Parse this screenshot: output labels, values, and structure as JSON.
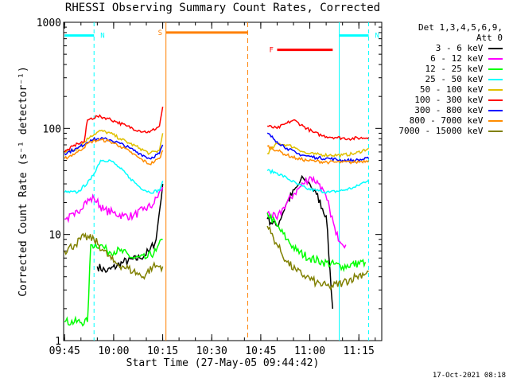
{
  "chart_data": {
    "type": "line",
    "title": "RHESSI Observing Summary Count Rates, Corrected",
    "xlabel": "Start Time (27-May-05 09:44:42)",
    "ylabel": "Corrected Count Rate (s⁻¹ detector⁻¹)",
    "yscale": "log",
    "ylim": [
      1,
      1000
    ],
    "xlim": [
      "09:45",
      "11:22"
    ],
    "x_ticks": [
      "09:45",
      "10:00",
      "10:15",
      "10:30",
      "10:45",
      "11:00",
      "11:15"
    ],
    "y_ticks": [
      "1",
      "10",
      "100",
      "1000"
    ],
    "grid": false,
    "legend_position": "right",
    "legend_header": [
      "Det 1,3,4,5,6,9,",
      "Att 0"
    ],
    "series": [
      {
        "name": "3 - 6 keV",
        "color": "#000000",
        "points": [
          [
            "09:55",
            5
          ],
          [
            "09:58",
            4.5
          ],
          [
            "10:03",
            5.5
          ],
          [
            "10:08",
            6
          ],
          [
            "10:11",
            7
          ],
          [
            "10:13",
            9
          ],
          [
            "10:15",
            30
          ],
          [
            "10:47",
            14
          ],
          [
            "10:50",
            12
          ],
          [
            "10:53",
            20
          ],
          [
            "10:56",
            28
          ],
          [
            "10:58",
            34
          ],
          [
            "11:00",
            30
          ],
          [
            "11:02",
            24
          ],
          [
            "11:05",
            15
          ],
          [
            "11:07",
            2
          ]
        ]
      },
      {
        "name": "6 - 12 keV",
        "color": "#ff00ff",
        "points": [
          [
            "09:45",
            14
          ],
          [
            "09:48",
            15
          ],
          [
            "09:51",
            20
          ],
          [
            "09:54",
            22
          ],
          [
            "09:57",
            17
          ],
          [
            "10:00",
            16
          ],
          [
            "10:03",
            15
          ],
          [
            "10:06",
            15
          ],
          [
            "10:09",
            17
          ],
          [
            "10:12",
            19
          ],
          [
            "10:15",
            28
          ],
          [
            "10:47",
            16
          ],
          [
            "10:50",
            14
          ],
          [
            "10:52",
            18
          ],
          [
            "10:55",
            24
          ],
          [
            "10:58",
            30
          ],
          [
            "11:00",
            35
          ],
          [
            "11:03",
            30
          ],
          [
            "11:06",
            18
          ],
          [
            "11:08",
            10
          ],
          [
            "11:11",
            8
          ]
        ]
      },
      {
        "name": "12 - 25 keV",
        "color": "#00ff00",
        "points": [
          [
            "09:45",
            1.5
          ],
          [
            "09:52",
            1.5
          ],
          [
            "09:53",
            8
          ],
          [
            "09:56",
            8
          ],
          [
            "09:58",
            7
          ],
          [
            "10:02",
            7
          ],
          [
            "10:06",
            6
          ],
          [
            "10:10",
            6
          ],
          [
            "10:13",
            7
          ],
          [
            "10:15",
            9
          ],
          [
            "10:47",
            16
          ],
          [
            "10:50",
            12
          ],
          [
            "10:53",
            9
          ],
          [
            "10:56",
            7
          ],
          [
            "11:00",
            6
          ],
          [
            "11:04",
            5.5
          ],
          [
            "11:10",
            5
          ],
          [
            "11:17",
            5.5
          ]
        ]
      },
      {
        "name": "25 - 50 keV",
        "color": "#00ffff",
        "points": [
          [
            "09:45",
            25
          ],
          [
            "09:49",
            25
          ],
          [
            "09:53",
            33
          ],
          [
            "09:56",
            50
          ],
          [
            "09:59",
            50
          ],
          [
            "10:02",
            42
          ],
          [
            "10:05",
            34
          ],
          [
            "10:08",
            28
          ],
          [
            "10:11",
            25
          ],
          [
            "10:14",
            26
          ],
          [
            "10:15",
            32
          ],
          [
            "10:47",
            40
          ],
          [
            "10:50",
            38
          ],
          [
            "10:53",
            34
          ],
          [
            "10:56",
            30
          ],
          [
            "10:59",
            27
          ],
          [
            "11:02",
            26
          ],
          [
            "11:06",
            25
          ],
          [
            "11:10",
            26
          ],
          [
            "11:14",
            28
          ],
          [
            "11:18",
            33
          ]
        ]
      },
      {
        "name": "50 - 100 keV",
        "color": "#e0c000",
        "points": [
          [
            "09:45",
            60
          ],
          [
            "09:49",
            65
          ],
          [
            "09:53",
            85
          ],
          [
            "09:56",
            95
          ],
          [
            "09:59",
            90
          ],
          [
            "10:02",
            80
          ],
          [
            "10:05",
            72
          ],
          [
            "10:08",
            65
          ],
          [
            "10:11",
            58
          ],
          [
            "10:14",
            62
          ],
          [
            "10:15",
            90
          ],
          [
            "10:47",
            58
          ],
          [
            "10:50",
            72
          ],
          [
            "10:53",
            70
          ],
          [
            "10:56",
            65
          ],
          [
            "10:59",
            58
          ],
          [
            "11:02",
            57
          ],
          [
            "11:06",
            56
          ],
          [
            "11:10",
            56
          ],
          [
            "11:14",
            58
          ],
          [
            "11:18",
            65
          ]
        ]
      },
      {
        "name": "100 - 300 keV",
        "color": "#ff0000",
        "points": [
          [
            "09:45",
            60
          ],
          [
            "09:49",
            72
          ],
          [
            "09:51",
            75
          ],
          [
            "09:52",
            120
          ],
          [
            "09:55",
            130
          ],
          [
            "09:58",
            125
          ],
          [
            "10:01",
            115
          ],
          [
            "10:04",
            105
          ],
          [
            "10:08",
            95
          ],
          [
            "10:11",
            92
          ],
          [
            "10:14",
            105
          ],
          [
            "10:15",
            160
          ],
          [
            "10:47",
            105
          ],
          [
            "10:50",
            100
          ],
          [
            "10:53",
            112
          ],
          [
            "10:55",
            120
          ],
          [
            "10:58",
            105
          ],
          [
            "11:01",
            92
          ],
          [
            "11:04",
            85
          ],
          [
            "11:08",
            82
          ],
          [
            "11:12",
            80
          ],
          [
            "11:18",
            82
          ]
        ]
      },
      {
        "name": "300 - 800 keV",
        "color": "#0000ff",
        "points": [
          [
            "09:45",
            58
          ],
          [
            "09:49",
            65
          ],
          [
            "09:53",
            78
          ],
          [
            "09:56",
            80
          ],
          [
            "09:59",
            78
          ],
          [
            "10:02",
            72
          ],
          [
            "10:05",
            65
          ],
          [
            "10:08",
            58
          ],
          [
            "10:11",
            52
          ],
          [
            "10:14",
            58
          ],
          [
            "10:15",
            70
          ],
          [
            "10:47",
            90
          ],
          [
            "10:50",
            75
          ],
          [
            "10:53",
            65
          ],
          [
            "10:56",
            58
          ],
          [
            "10:59",
            55
          ],
          [
            "11:02",
            53
          ],
          [
            "11:06",
            52
          ],
          [
            "11:10",
            50
          ],
          [
            "11:14",
            50
          ],
          [
            "11:18",
            52
          ]
        ]
      },
      {
        "name": "800 - 7000 keV",
        "color": "#ff8c00",
        "points": [
          [
            "09:45",
            52
          ],
          [
            "09:49",
            60
          ],
          [
            "09:53",
            75
          ],
          [
            "09:56",
            78
          ],
          [
            "09:59",
            75
          ],
          [
            "10:02",
            68
          ],
          [
            "10:05",
            60
          ],
          [
            "10:08",
            52
          ],
          [
            "10:11",
            46
          ],
          [
            "10:14",
            52
          ],
          [
            "10:15",
            62
          ],
          [
            "10:47",
            68
          ],
          [
            "10:50",
            62
          ],
          [
            "10:53",
            56
          ],
          [
            "10:56",
            52
          ],
          [
            "10:59",
            50
          ],
          [
            "11:02",
            49
          ],
          [
            "11:06",
            48
          ],
          [
            "11:10",
            48
          ],
          [
            "11:14",
            48
          ],
          [
            "11:18",
            50
          ]
        ]
      },
      {
        "name": "7000 - 15000 keV",
        "color": "#808000",
        "points": [
          [
            "09:45",
            7
          ],
          [
            "09:48",
            8
          ],
          [
            "09:51",
            9.5
          ],
          [
            "09:54",
            9
          ],
          [
            "09:57",
            7
          ],
          [
            "10:00",
            5.5
          ],
          [
            "10:03",
            5
          ],
          [
            "10:06",
            4.5
          ],
          [
            "10:09",
            4
          ],
          [
            "10:12",
            5
          ],
          [
            "10:15",
            5
          ],
          [
            "10:47",
            12
          ],
          [
            "10:50",
            8
          ],
          [
            "10:53",
            5.5
          ],
          [
            "10:56",
            4.5
          ],
          [
            "10:59",
            4
          ],
          [
            "11:02",
            3.5
          ],
          [
            "11:06",
            3.2
          ],
          [
            "11:10",
            3.5
          ],
          [
            "11:14",
            4
          ],
          [
            "11:18",
            4.5
          ]
        ]
      }
    ],
    "annotations": [
      {
        "label": "N",
        "color": "#00ffff",
        "start": "09:45",
        "end": "09:54",
        "level": 750
      },
      {
        "label": "N",
        "color": "#00ffff",
        "start": "11:09",
        "end": "11:18",
        "level": 750
      },
      {
        "label": "S",
        "color": "#ff8000",
        "start": "10:16",
        "end": "10:41",
        "level": 800
      },
      {
        "label": "F",
        "color": "#ff0000",
        "start": "10:50",
        "end": "11:07",
        "level": 550
      }
    ],
    "cyan_lines_dashed": [
      "09:54",
      "11:18"
    ],
    "cyan_lines_solid": [
      "11:09"
    ],
    "orange_lines_solid": [
      "10:16"
    ],
    "orange_lines_dashed": [
      "10:41"
    ]
  },
  "footer_date": "17-Oct-2021 08:18"
}
